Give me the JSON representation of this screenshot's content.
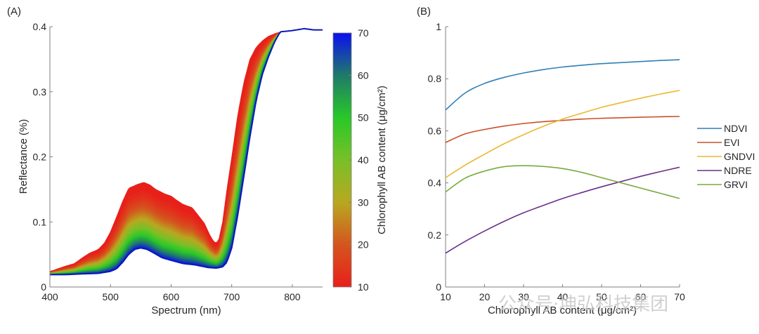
{
  "chart_data": [
    {
      "panel": "(A)",
      "type": "area",
      "title": "",
      "xlabel": "Spectrum (nm)",
      "ylabel": "Reflectance (%)",
      "xlim": [
        400,
        850
      ],
      "ylim": [
        0,
        0.4
      ],
      "xticks": [
        "400",
        "500",
        "600",
        "700",
        "800"
      ],
      "xtick_values": [
        400,
        500,
        600,
        700,
        800
      ],
      "yticks": [
        "0",
        "0.1",
        "0.2",
        "0.3",
        "0.4"
      ],
      "ytick_values": [
        0,
        0.1,
        0.2,
        0.3,
        0.4
      ],
      "grid": false,
      "colorbar": {
        "label": "Chlorophyll AB content (μg/cm²)",
        "range": [
          10,
          70
        ],
        "ticks": [
          "10",
          "20",
          "30",
          "40",
          "50",
          "60",
          "70"
        ],
        "tick_values": [
          10,
          20,
          30,
          40,
          50,
          60,
          70
        ],
        "colors": [
          {
            "value": 10,
            "color": "#e8201a"
          },
          {
            "value": 20,
            "color": "#d4551e"
          },
          {
            "value": 30,
            "color": "#b8a820"
          },
          {
            "value": 40,
            "color": "#78c028"
          },
          {
            "value": 50,
            "color": "#28c828"
          },
          {
            "value": 60,
            "color": "#207a6a"
          },
          {
            "value": 70,
            "color": "#0a10f0"
          }
        ]
      },
      "series": [
        {
          "name": "Chlorophyll 10 μg/cm²",
          "x": [
            400,
            425,
            440,
            455,
            465,
            480,
            490,
            500,
            510,
            520,
            530,
            545,
            555,
            565,
            575,
            590,
            600,
            610,
            620,
            635,
            645,
            655,
            665,
            672,
            678,
            685,
            692,
            700,
            710,
            720,
            730,
            740,
            750,
            760,
            770,
            780,
            800,
            820,
            835,
            850
          ],
          "y": [
            0.024,
            0.032,
            0.036,
            0.046,
            0.052,
            0.058,
            0.068,
            0.085,
            0.108,
            0.132,
            0.152,
            0.158,
            0.161,
            0.157,
            0.15,
            0.143,
            0.14,
            0.133,
            0.127,
            0.122,
            0.11,
            0.098,
            0.078,
            0.068,
            0.07,
            0.1,
            0.15,
            0.2,
            0.265,
            0.315,
            0.35,
            0.368,
            0.378,
            0.385,
            0.389,
            0.392,
            0.394,
            0.397,
            0.395,
            0.395
          ]
        },
        {
          "name": "Chlorophyll 70 μg/cm²",
          "x": [
            400,
            425,
            450,
            480,
            500,
            510,
            520,
            530,
            540,
            550,
            560,
            570,
            585,
            600,
            620,
            640,
            660,
            675,
            685,
            692,
            700,
            710,
            720,
            730,
            740,
            750,
            760,
            770,
            780,
            800,
            820,
            835,
            850
          ],
          "y": [
            0.019,
            0.019,
            0.02,
            0.021,
            0.024,
            0.028,
            0.038,
            0.05,
            0.058,
            0.06,
            0.058,
            0.053,
            0.045,
            0.041,
            0.036,
            0.034,
            0.03,
            0.029,
            0.031,
            0.038,
            0.06,
            0.11,
            0.17,
            0.23,
            0.285,
            0.325,
            0.352,
            0.375,
            0.392,
            0.394,
            0.397,
            0.395,
            0.395
          ]
        }
      ]
    },
    {
      "panel": "(B)",
      "type": "line",
      "title": "",
      "xlabel": "Chlorophyll AB content (μg/cm²)",
      "ylabel": "",
      "xlim": [
        10,
        70
      ],
      "ylim": [
        0,
        1
      ],
      "xticks": [
        "10",
        "20",
        "30",
        "40",
        "50",
        "60",
        "70"
      ],
      "xtick_values": [
        10,
        20,
        30,
        40,
        50,
        60,
        70
      ],
      "yticks": [
        "0",
        "0.2",
        "0.4",
        "0.6",
        "0.8",
        "1"
      ],
      "ytick_values": [
        0,
        0.2,
        0.4,
        0.6,
        0.8,
        1
      ],
      "grid": false,
      "legend_position": "right",
      "x": [
        10,
        15,
        20,
        25,
        30,
        35,
        40,
        45,
        50,
        55,
        60,
        65,
        70
      ],
      "series": [
        {
          "name": "NDVI",
          "color": "#2e7fb5",
          "values": [
            0.68,
            0.745,
            0.782,
            0.805,
            0.822,
            0.835,
            0.845,
            0.852,
            0.858,
            0.862,
            0.866,
            0.87,
            0.873
          ]
        },
        {
          "name": "EVI",
          "color": "#c8502a",
          "values": [
            0.555,
            0.588,
            0.605,
            0.618,
            0.628,
            0.635,
            0.64,
            0.645,
            0.648,
            0.65,
            0.652,
            0.654,
            0.655
          ]
        },
        {
          "name": "GNDVI",
          "color": "#eab830",
          "values": [
            0.42,
            0.468,
            0.51,
            0.55,
            0.585,
            0.617,
            0.645,
            0.668,
            0.69,
            0.708,
            0.725,
            0.741,
            0.755
          ]
        },
        {
          "name": "NDRE",
          "color": "#6a2f8a",
          "values": [
            0.13,
            0.175,
            0.215,
            0.252,
            0.285,
            0.313,
            0.34,
            0.363,
            0.385,
            0.405,
            0.425,
            0.443,
            0.46
          ]
        },
        {
          "name": "GRVI",
          "color": "#7aaa40",
          "values": [
            0.365,
            0.418,
            0.445,
            0.462,
            0.466,
            0.463,
            0.455,
            0.44,
            0.42,
            0.4,
            0.38,
            0.36,
            0.34
          ]
        }
      ]
    }
  ],
  "watermark": "公众号·坤弘科技集团"
}
